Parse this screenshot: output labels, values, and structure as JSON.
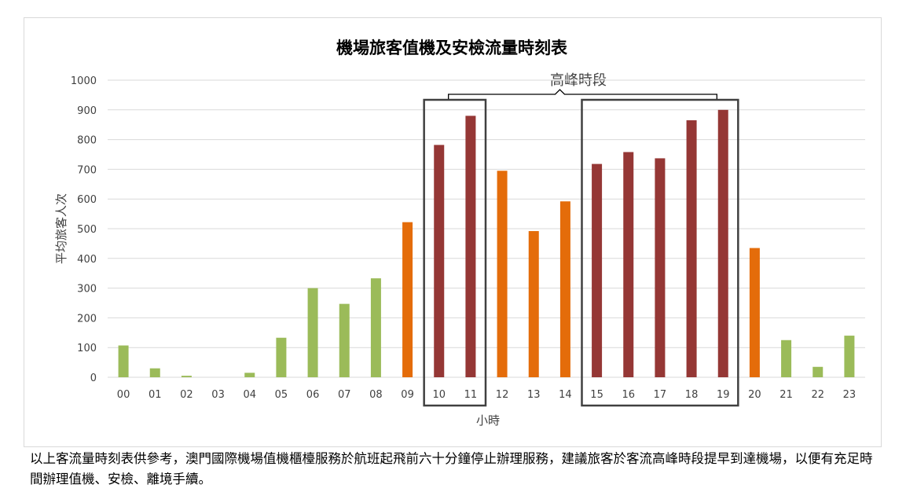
{
  "chart_data": {
    "type": "bar",
    "title": "機場旅客值機及安檢流量時刻表",
    "xlabel": "小時",
    "ylabel": "平均旅客人次",
    "ylim": [
      0,
      1000
    ],
    "yticks": [
      0,
      100,
      200,
      300,
      400,
      500,
      600,
      700,
      800,
      900,
      1000
    ],
    "categories": [
      "00",
      "01",
      "02",
      "03",
      "04",
      "05",
      "06",
      "07",
      "08",
      "09",
      "10",
      "11",
      "12",
      "13",
      "14",
      "15",
      "16",
      "17",
      "18",
      "19",
      "20",
      "21",
      "22",
      "23"
    ],
    "values": [
      107,
      30,
      5,
      0,
      15,
      133,
      300,
      247,
      333,
      522,
      782,
      880,
      695,
      492,
      592,
      718,
      758,
      737,
      865,
      900,
      435,
      125,
      35,
      140
    ],
    "bar_colors": [
      "#9bbb59",
      "#9bbb59",
      "#9bbb59",
      "#9bbb59",
      "#9bbb59",
      "#9bbb59",
      "#9bbb59",
      "#9bbb59",
      "#9bbb59",
      "#e46c0a",
      "#953735",
      "#953735",
      "#e46c0a",
      "#e46c0a",
      "#e46c0a",
      "#953735",
      "#953735",
      "#953735",
      "#953735",
      "#953735",
      "#e46c0a",
      "#9bbb59",
      "#9bbb59",
      "#9bbb59"
    ],
    "grid": true,
    "legend": "none",
    "annotation": {
      "label": "高峰時段",
      "highlight_groups": [
        [
          "10",
          "11"
        ],
        [
          "15",
          "16",
          "17",
          "18",
          "19"
        ]
      ]
    }
  },
  "footnote": "以上客流量時刻表供參考，澳門國際機場值機櫃檯服務於航班起飛前六十分鐘停止辦理服務，建議旅客於客流高峰時段提早到達機場，以便有充足時間辦理值機、安檢、離境手續。",
  "colors": {
    "low": "#9bbb59",
    "medium": "#e46c0a",
    "peak": "#953735",
    "grid": "#d9d9d9",
    "box": "#404040"
  }
}
